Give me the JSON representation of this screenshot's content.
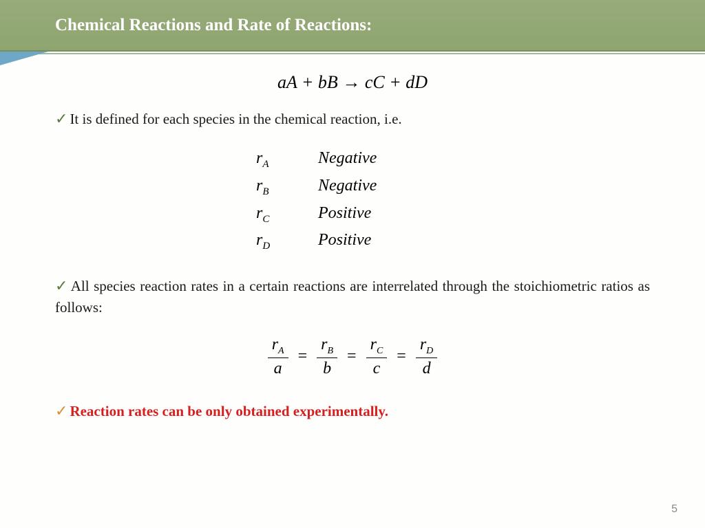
{
  "header": {
    "title": "Chemical Reactions and Rate of Reactions:"
  },
  "equation": {
    "terms": [
      "aA",
      "+",
      "bB",
      "→",
      "cC",
      "+",
      "dD"
    ]
  },
  "bullet1": "It is defined for each species in the chemical reaction, i.e.",
  "rates": [
    {
      "symbol": "r",
      "sub": "A",
      "sign": "Negative"
    },
    {
      "symbol": "r",
      "sub": "B",
      "sign": "Negative"
    },
    {
      "symbol": "r",
      "sub": "C",
      "sign": "Positive"
    },
    {
      "symbol": "r",
      "sub": "D",
      "sign": "Positive"
    }
  ],
  "bullet2": "All species reaction rates in a certain reactions are interrelated through the stoichiometric ratios as follows:",
  "fracs": [
    {
      "numSym": "r",
      "numSub": "A",
      "den": "a"
    },
    {
      "numSym": "r",
      "numSub": "B",
      "den": "b"
    },
    {
      "numSym": "r",
      "numSub": "C",
      "den": "c"
    },
    {
      "numSym": "r",
      "numSub": "D",
      "den": "d"
    }
  ],
  "bullet3": "Reaction rates can be only obtained experimentally.",
  "pageNumber": "5",
  "checkmark": "✓"
}
